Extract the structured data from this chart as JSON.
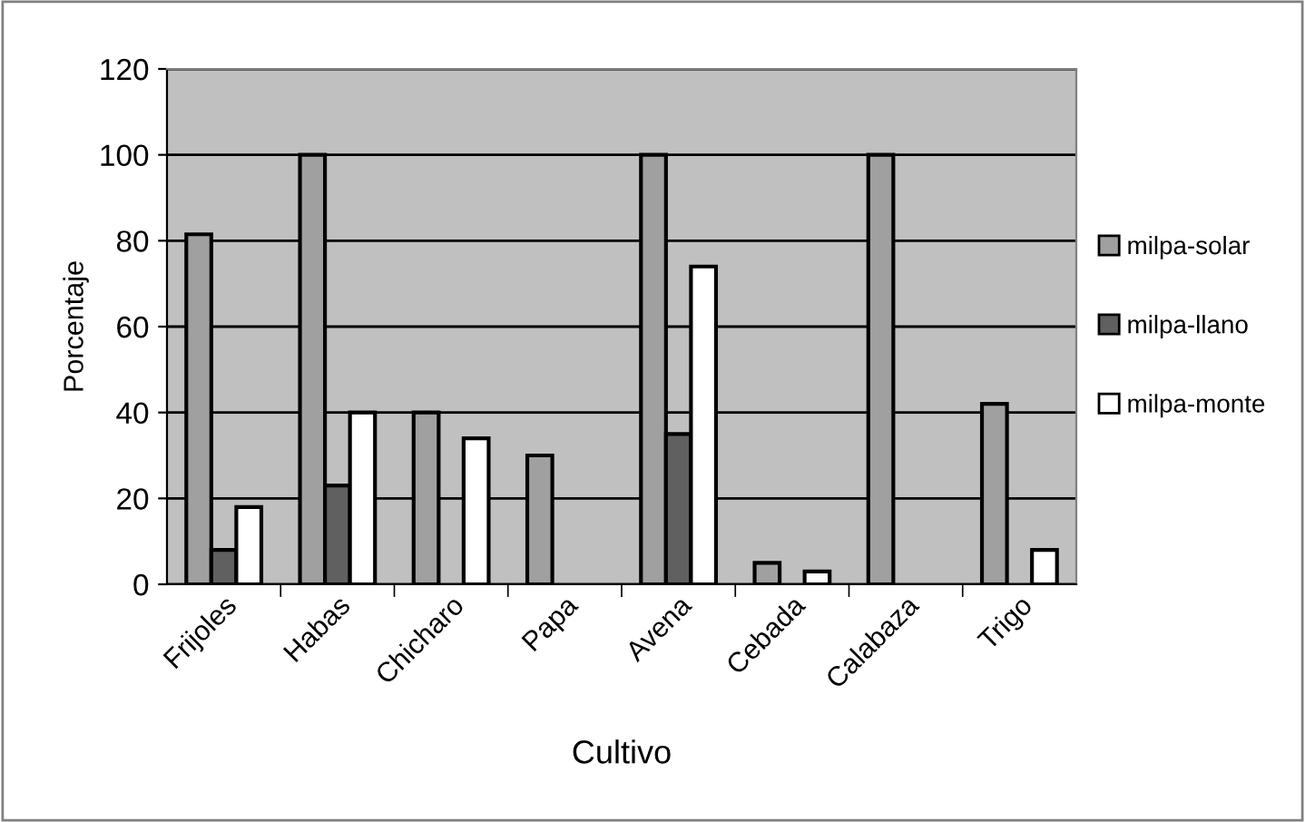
{
  "chart_data": {
    "type": "bar",
    "xlabel": "Cultivo",
    "ylabel": "Porcentaje",
    "categories": [
      "Frijoles",
      "Habas",
      "Chicharo",
      "Papa",
      "Avena",
      "Cebada",
      "Calabaza",
      "Trigo"
    ],
    "series": [
      {
        "name": "milpa-solar",
        "color": "#a0a0a0",
        "values": [
          81.5,
          100,
          40,
          30,
          100,
          5,
          100,
          42
        ]
      },
      {
        "name": "milpa-llano",
        "color": "#606060",
        "values": [
          8,
          23,
          null,
          null,
          35,
          null,
          null,
          null
        ]
      },
      {
        "name": "milpa-monte",
        "color": "#ffffff",
        "values": [
          18,
          40,
          34,
          null,
          74,
          3,
          null,
          8
        ]
      }
    ],
    "ylim": [
      0,
      120
    ],
    "yticks": [
      0,
      20,
      40,
      60,
      80,
      100,
      120
    ],
    "grid": "y",
    "legend": "right"
  }
}
